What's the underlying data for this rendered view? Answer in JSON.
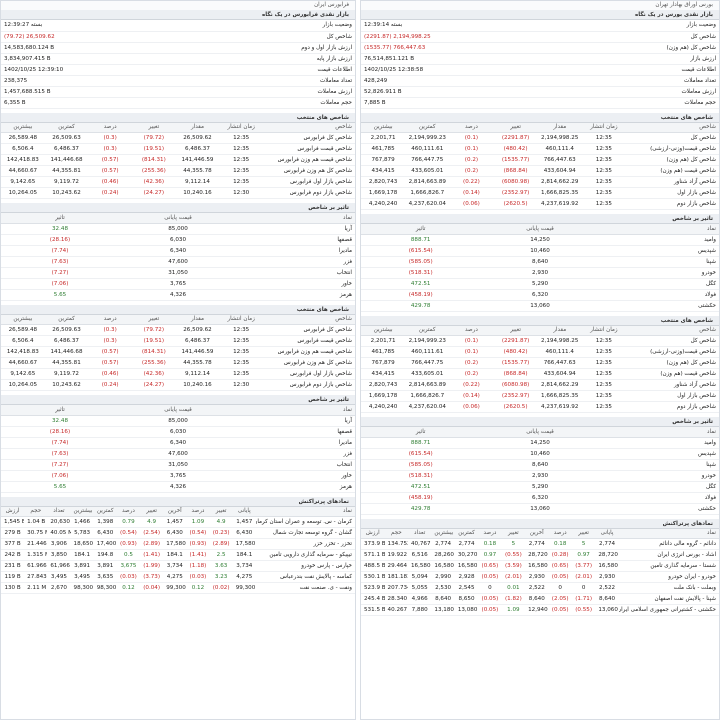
{
  "tehran_panel": {
    "breadcrumb": "بورس اوراق بهادار تهران",
    "title": "بازار نقدی بورس در یک نگاه",
    "summary": [
      {
        "label": "وضعیت بازار",
        "value": "بسته 12:39:14"
      },
      {
        "label": "شاخص کل",
        "value": "(2291.87) 2,194,998.25",
        "neg": true
      },
      {
        "label": "شاخص کل (هم وزن)",
        "value": "(1535.77) 766,447.63",
        "neg": true
      },
      {
        "label": "ارزش بازار",
        "value": "76,514,851.121 B"
      },
      {
        "label": "اطلاعات قیمت",
        "value": "1402/10/25 12:38:58"
      },
      {
        "label": "تعداد معاملات",
        "value": "428,249"
      },
      {
        "label": "ارزش معاملات",
        "value": "52,826.911 B"
      },
      {
        "label": "حجم معاملات",
        "value": "7,885 B"
      }
    ],
    "idx_title": "شاخص های منتخب",
    "idx_cols": [
      "شاخص",
      "زمان انتشار",
      "مقدار",
      "تغییر",
      "درصد",
      "کمترین",
      "بیشترین"
    ],
    "idx_rows": [
      [
        "شاخص کل",
        "12:35",
        "2,194,998.25",
        "(2291.87)",
        "(0.1)",
        "2,194,999.23",
        "2,201,71"
      ],
      [
        "شاخص قیمت(وزنی-ارزشی)",
        "12:35",
        "460,111.4",
        "(480.42)",
        "(0.1)",
        "460,111.61",
        "461,785"
      ],
      [
        "شاخص کل (هم وزن)",
        "12:35",
        "766,447.63",
        "(1535.77)",
        "(0.2)",
        "766,447.75",
        "767,879"
      ],
      [
        "شاخص قیمت (هم وزن)",
        "12:35",
        "433,604.94",
        "(868.84)",
        "(0.2)",
        "433,605.01",
        "434,415"
      ],
      [
        "شاخص آزاد شناور",
        "12:35",
        "2,814,662.29",
        "(6080.98)",
        "(0.22)",
        "2,814,663.89",
        "2,820,743"
      ],
      [
        "شاخص بازار اول",
        "12:35",
        "1,666,825.35",
        "(2352.97)",
        "(0.14)",
        "1,666,826.7",
        "1,669,178"
      ],
      [
        "شاخص بازار دوم",
        "12:35",
        "4,237,619.92",
        "(2620.5)",
        "(0.06)",
        "4,237,620.04",
        "4,240,240"
      ]
    ],
    "imp_title": "تاثیر بر شاخص",
    "imp_cols": [
      "نماد",
      "قیمت پایانی",
      "تاثیر"
    ],
    "imp_rows": [
      [
        "وامید",
        "14,250",
        "888.71",
        false
      ],
      [
        "شپدیس",
        "10,460",
        "(615.54)",
        true
      ],
      [
        "شپنا",
        "8,640",
        "(585.05)",
        true
      ],
      [
        "خودرو",
        "2,930",
        "(518.31)",
        true
      ],
      [
        "کگل",
        "5,290",
        "472.51",
        false
      ],
      [
        "فولاد",
        "6,320",
        "(458.19)",
        true
      ],
      [
        "حکشتی",
        "13,060",
        "429.78",
        false
      ]
    ],
    "sym_title": "نمادهای پرتراکنش",
    "sym_cols": [
      "نماد",
      "پایانی",
      "تغییر",
      "درصد",
      "آخرین",
      "تغییر",
      "درصد",
      "کمترین",
      "بیشترین",
      "تعداد",
      "حجم",
      "ارزش"
    ],
    "sym_rows": [
      [
        "دانائم - گروه مالی دانائم",
        "2,774",
        "5",
        "0.18",
        "2,774",
        "5",
        "0.18",
        "2,774",
        "2,774",
        "40,767",
        "134.752 M",
        "373.9 B"
      ],
      [
        "اشاد - بورس انرژی ایران",
        "28,720",
        "0.97",
        "(0.28)",
        "28,720",
        "(0.55)",
        "0.97",
        "30,270",
        "28,260",
        "6,516",
        "19.922 M",
        "571.1 B"
      ],
      [
        "شستا - سرمایه گذاری تامین",
        "16,580",
        "(3.77)",
        "(0.65)",
        "16,580",
        "(3.59)",
        "(0.65)",
        "16,580",
        "16,580",
        "16,580",
        "29.464 M",
        "488.5 B"
      ],
      [
        "خودرو - ایران خودرو",
        "2,930",
        "(2.01)",
        "(0.05)",
        "2,930",
        "(2.01)",
        "(0.05)",
        "2,928",
        "2,990",
        "5,094",
        "181.183 M",
        "530.1 B"
      ],
      [
        "وبملت - بانک ملت",
        "2,522",
        "0",
        "0",
        "2,522",
        "0.01",
        "0",
        "2,545",
        "2,530",
        "5,055",
        "207.734 M",
        "523.9 B"
      ],
      [
        "شپنا - پالایش نفت اصفهان",
        "8,640",
        "(1.71)",
        "(2.05)",
        "8,640",
        "(1.82)",
        "(0.05)",
        "8,650",
        "8,640",
        "4,966",
        "28.340 M",
        "245.4 B"
      ],
      [
        "حکشتی - کشتیرانی جمهوری اسلامی ایران",
        "13,060",
        "(0.55)",
        "(0.05)",
        "12,940",
        "1.09",
        "(0.05)",
        "13,080",
        "13,180",
        "7,880",
        "40.267 M",
        "531.5 B"
      ]
    ]
  },
  "farabourse_panel": {
    "breadcrumb": "فرابورس ایران",
    "title": "بازار نقدی فرابورس در یک نگاه",
    "summary": [
      {
        "label": "وضعیت بازار",
        "value": "بسته 12:39:27"
      },
      {
        "label": "شاخص کل",
        "value": "(79.72) 26,509.62",
        "neg": true
      },
      {
        "label": "ارزش بازار اول و دوم",
        "value": "14,583,680.124 B"
      },
      {
        "label": "ارزش بازار پایه",
        "value": "3,834,907.415 B"
      },
      {
        "label": "اطلاعات قیمت",
        "value": "1402/10/25 12:39:10"
      },
      {
        "label": "تعداد معاملات",
        "value": "238,375"
      },
      {
        "label": "ارزش معاملات",
        "value": "1,457,688.515 B"
      },
      {
        "label": "حجم معاملات",
        "value": "6,355 B"
      }
    ],
    "idx_title": "شاخص های منتخب",
    "idx_cols": [
      "شاخص",
      "زمان انتشار",
      "مقدار",
      "تغییر",
      "درصد",
      "کمترین",
      "بیشترین"
    ],
    "idx_rows": [
      [
        "شاخص کل فرابورس",
        "12:35",
        "26,509.62",
        "(79.72)",
        "(0.3)",
        "26,509.63",
        "26,589.48"
      ],
      [
        "شاخص قیمت فرابورس",
        "12:35",
        "6,486.37",
        "(19.51)",
        "(0.3)",
        "6,486.37",
        "6,506.4"
      ],
      [
        "شاخص قیمت هم وزن فرابورس",
        "12:35",
        "141,446.59",
        "(814.31)",
        "(0.57)",
        "141,446.68",
        "142,418.83"
      ],
      [
        "شاخص کل هم وزن فرابورس",
        "12:35",
        "44,355.78",
        "(255.36)",
        "(0.57)",
        "44,355.81",
        "44,660.67"
      ],
      [
        "شاخص بازار اول فرابورس",
        "12:35",
        "9,112.14",
        "(42.36)",
        "(0.46)",
        "9,119.72",
        "9,142.65"
      ],
      [
        "شاخص بازار دوم فرابورس",
        "12:30",
        "10,240.16",
        "(24.27)",
        "(0.24)",
        "10,243.62",
        "10,264.05"
      ]
    ],
    "imp_title": "تاثیر بر شاخص",
    "imp_cols": [
      "نماد",
      "قیمت پایانی",
      "تاثیر"
    ],
    "imp_rows": [
      [
        "آریا",
        "85,000",
        "32.48",
        false
      ],
      [
        "قصفها",
        "6,030",
        "(28.16)",
        true
      ],
      [
        "مادیرا",
        "6,340",
        "(7.74)",
        true
      ],
      [
        "فزر",
        "47,600",
        "(7.63)",
        true
      ],
      [
        "انتخاب",
        "31,050",
        "(7.27)",
        true
      ],
      [
        "خاور",
        "3,765",
        "(7.06)",
        true
      ],
      [
        "هرمز",
        "4,326",
        "5.65",
        false
      ]
    ],
    "sym_title": "نمادهای پرتراکنش",
    "sym_cols": [
      "نماد",
      "پایانی",
      "تغییر",
      "درصد",
      "آخرین",
      "تغییر",
      "درصد",
      "کمترین",
      "بیشترین",
      "تعداد",
      "حجم",
      "ارزش"
    ],
    "sym_rows": [
      [
        "کرمان - س. توسعه و عمران استان کرمان",
        "1,457",
        "4.9",
        "1.09",
        "1,457",
        "4.9",
        "0.79",
        "1,398",
        "1,466",
        "20,630",
        "1.04 B",
        "1,545 B"
      ],
      [
        "گشان - گروه توسعه تجارت شمال",
        "6,430",
        "(0.23)",
        "(0.54)",
        "6,430",
        "(2.54)",
        "(0.54)",
        "6,430",
        "5,783",
        "40.05 M",
        "30.75 M",
        "279 B"
      ],
      [
        "تخزر - تخزر خزر",
        "17,580",
        "(2.89)",
        "(0.93)",
        "17,580",
        "(2.89)",
        "(0.93)",
        "17,400",
        "18,650",
        "3,906",
        "21.446 M",
        "377 B"
      ],
      [
        "تیپیکو - سرمایه گذاری دارویی تامین",
        "184.1",
        "2.5",
        "(1.41)",
        "184.1",
        "(1.41)",
        "0.5",
        "194.8",
        "184.1",
        "3,850",
        "1.315 M",
        "242 B"
      ],
      [
        "خپارس - پارس خودرو",
        "3,734",
        "3.63",
        "(1.18)",
        "3,734",
        "(1.99)",
        "3,675",
        "3,891",
        "3,891",
        "61,966",
        "61.966 M",
        "231 B"
      ],
      [
        "کماسه - پالایش نفت بندرعباس",
        "4,275",
        "3.23",
        "(0.03)",
        "4,275",
        "(3.73)",
        "(0.03)",
        "3,635",
        "3,495",
        "3,495",
        "27.843 M",
        "119 B"
      ],
      [
        "ونفت - ی. صنعت نفت",
        "99,300",
        "(0.02)",
        "0.12",
        "99,300",
        "(0.04)",
        "0.12",
        "98,300",
        "98,300",
        "2,670",
        "2.11 M",
        "130 B"
      ]
    ]
  }
}
